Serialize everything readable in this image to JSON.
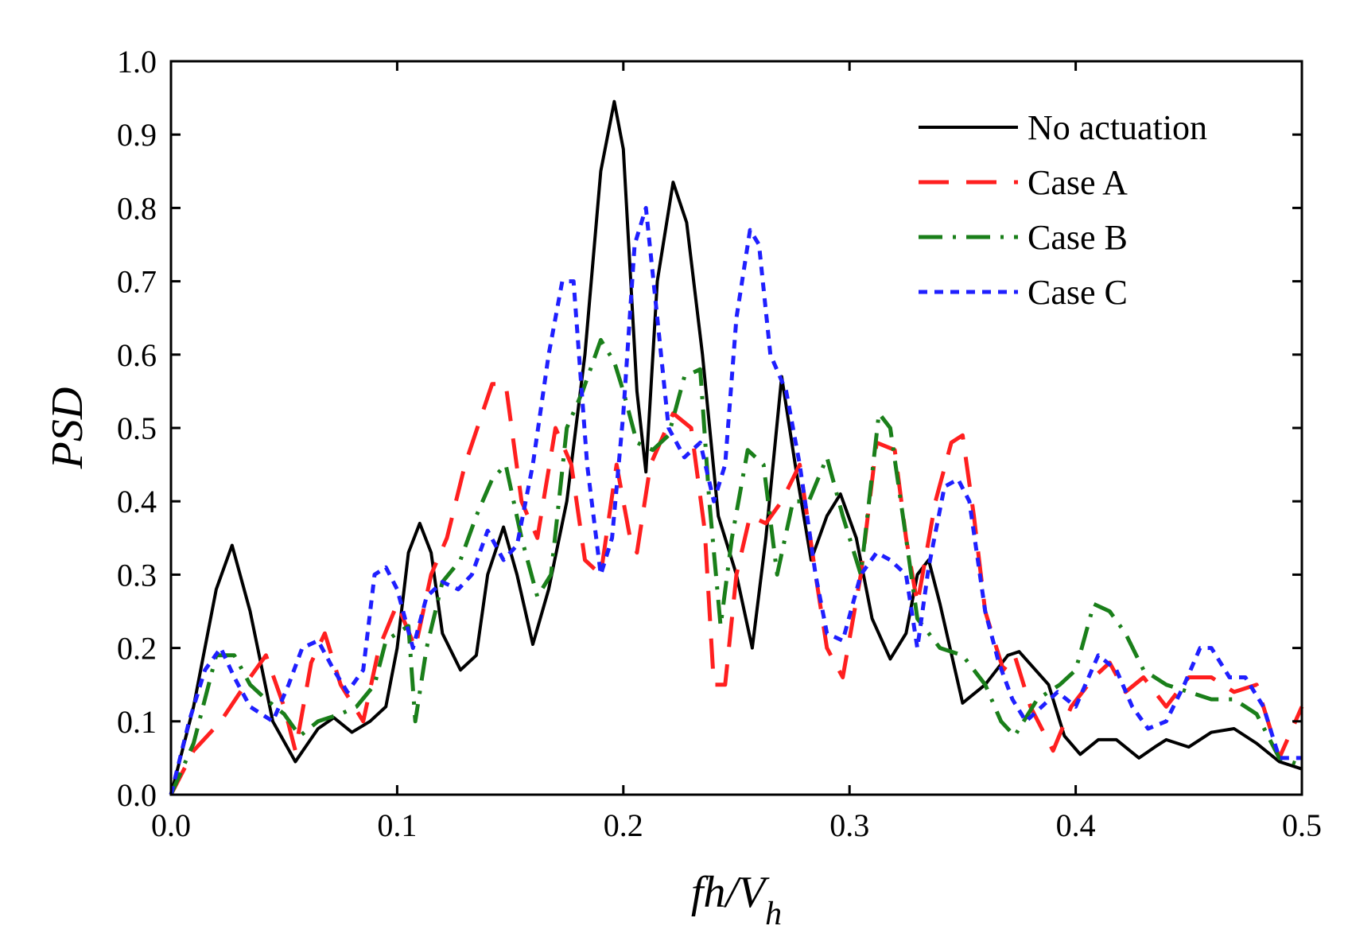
{
  "chart_data": {
    "type": "line",
    "title": "",
    "xlabel": "fh/V",
    "xlabel_subscript": "h",
    "ylabel": "PSD",
    "xlim": [
      0.0,
      0.5
    ],
    "ylim": [
      0.0,
      1.0
    ],
    "xticks": [
      "0.0",
      "0.1",
      "0.2",
      "0.3",
      "0.4",
      "0.5"
    ],
    "yticks": [
      "0.0",
      "0.1",
      "0.2",
      "0.3",
      "0.4",
      "0.5",
      "0.6",
      "0.7",
      "0.8",
      "0.9",
      "1.0"
    ],
    "grid": false,
    "legend_position": "top-right",
    "series": [
      {
        "name": "No actuation",
        "color": "#000000",
        "style": "solid",
        "points": [
          [
            0.0,
            0.0
          ],
          [
            0.01,
            0.12
          ],
          [
            0.02,
            0.28
          ],
          [
            0.027,
            0.34
          ],
          [
            0.035,
            0.25
          ],
          [
            0.045,
            0.1
          ],
          [
            0.055,
            0.045
          ],
          [
            0.065,
            0.09
          ],
          [
            0.072,
            0.105
          ],
          [
            0.08,
            0.085
          ],
          [
            0.088,
            0.1
          ],
          [
            0.095,
            0.12
          ],
          [
            0.1,
            0.2
          ],
          [
            0.105,
            0.33
          ],
          [
            0.11,
            0.37
          ],
          [
            0.115,
            0.33
          ],
          [
            0.12,
            0.22
          ],
          [
            0.128,
            0.17
          ],
          [
            0.135,
            0.19
          ],
          [
            0.14,
            0.3
          ],
          [
            0.147,
            0.365
          ],
          [
            0.153,
            0.3
          ],
          [
            0.16,
            0.205
          ],
          [
            0.167,
            0.28
          ],
          [
            0.175,
            0.4
          ],
          [
            0.183,
            0.6
          ],
          [
            0.19,
            0.85
          ],
          [
            0.196,
            0.945
          ],
          [
            0.2,
            0.88
          ],
          [
            0.206,
            0.55
          ],
          [
            0.21,
            0.44
          ],
          [
            0.215,
            0.7
          ],
          [
            0.222,
            0.835
          ],
          [
            0.228,
            0.78
          ],
          [
            0.235,
            0.6
          ],
          [
            0.242,
            0.38
          ],
          [
            0.25,
            0.3
          ],
          [
            0.257,
            0.2
          ],
          [
            0.263,
            0.35
          ],
          [
            0.27,
            0.57
          ],
          [
            0.276,
            0.45
          ],
          [
            0.283,
            0.32
          ],
          [
            0.29,
            0.38
          ],
          [
            0.296,
            0.41
          ],
          [
            0.303,
            0.35
          ],
          [
            0.31,
            0.24
          ],
          [
            0.318,
            0.185
          ],
          [
            0.325,
            0.22
          ],
          [
            0.33,
            0.3
          ],
          [
            0.335,
            0.32
          ],
          [
            0.34,
            0.26
          ],
          [
            0.35,
            0.125
          ],
          [
            0.36,
            0.15
          ],
          [
            0.37,
            0.19
          ],
          [
            0.375,
            0.195
          ],
          [
            0.388,
            0.15
          ],
          [
            0.395,
            0.08
          ],
          [
            0.402,
            0.055
          ],
          [
            0.41,
            0.075
          ],
          [
            0.418,
            0.075
          ],
          [
            0.428,
            0.05
          ],
          [
            0.435,
            0.065
          ],
          [
            0.44,
            0.075
          ],
          [
            0.45,
            0.065
          ],
          [
            0.46,
            0.085
          ],
          [
            0.47,
            0.09
          ],
          [
            0.48,
            0.07
          ],
          [
            0.49,
            0.045
          ],
          [
            0.5,
            0.035
          ]
        ]
      },
      {
        "name": "Case A",
        "color": "#ff1f1f",
        "style": "dashed",
        "points": [
          [
            0.0,
            0.0
          ],
          [
            0.01,
            0.06
          ],
          [
            0.022,
            0.1
          ],
          [
            0.035,
            0.16
          ],
          [
            0.042,
            0.19
          ],
          [
            0.05,
            0.12
          ],
          [
            0.055,
            0.06
          ],
          [
            0.062,
            0.18
          ],
          [
            0.068,
            0.22
          ],
          [
            0.075,
            0.15
          ],
          [
            0.085,
            0.1
          ],
          [
            0.092,
            0.2
          ],
          [
            0.1,
            0.26
          ],
          [
            0.108,
            0.2
          ],
          [
            0.115,
            0.3
          ],
          [
            0.122,
            0.35
          ],
          [
            0.13,
            0.45
          ],
          [
            0.142,
            0.56
          ],
          [
            0.148,
            0.56
          ],
          [
            0.155,
            0.4
          ],
          [
            0.162,
            0.35
          ],
          [
            0.17,
            0.5
          ],
          [
            0.177,
            0.45
          ],
          [
            0.183,
            0.32
          ],
          [
            0.19,
            0.3
          ],
          [
            0.197,
            0.45
          ],
          [
            0.203,
            0.35
          ],
          [
            0.206,
            0.33
          ],
          [
            0.212,
            0.45
          ],
          [
            0.222,
            0.52
          ],
          [
            0.23,
            0.5
          ],
          [
            0.236,
            0.36
          ],
          [
            0.24,
            0.15
          ],
          [
            0.245,
            0.15
          ],
          [
            0.25,
            0.3
          ],
          [
            0.256,
            0.38
          ],
          [
            0.263,
            0.37
          ],
          [
            0.27,
            0.4
          ],
          [
            0.278,
            0.45
          ],
          [
            0.285,
            0.3
          ],
          [
            0.29,
            0.2
          ],
          [
            0.297,
            0.16
          ],
          [
            0.305,
            0.3
          ],
          [
            0.312,
            0.48
          ],
          [
            0.32,
            0.47
          ],
          [
            0.325,
            0.35
          ],
          [
            0.33,
            0.26
          ],
          [
            0.338,
            0.4
          ],
          [
            0.345,
            0.48
          ],
          [
            0.35,
            0.49
          ],
          [
            0.355,
            0.38
          ],
          [
            0.36,
            0.25
          ],
          [
            0.368,
            0.17
          ],
          [
            0.373,
            0.19
          ],
          [
            0.38,
            0.12
          ],
          [
            0.39,
            0.06
          ],
          [
            0.398,
            0.12
          ],
          [
            0.408,
            0.16
          ],
          [
            0.415,
            0.18
          ],
          [
            0.422,
            0.14
          ],
          [
            0.43,
            0.16
          ],
          [
            0.44,
            0.12
          ],
          [
            0.45,
            0.16
          ],
          [
            0.46,
            0.16
          ],
          [
            0.47,
            0.14
          ],
          [
            0.48,
            0.15
          ],
          [
            0.49,
            0.05
          ],
          [
            0.5,
            0.12
          ]
        ]
      },
      {
        "name": "Case B",
        "color": "#1a7f1a",
        "style": "dashdot",
        "points": [
          [
            0.0,
            0.0
          ],
          [
            0.01,
            0.07
          ],
          [
            0.02,
            0.19
          ],
          [
            0.028,
            0.19
          ],
          [
            0.035,
            0.15
          ],
          [
            0.042,
            0.13
          ],
          [
            0.05,
            0.11
          ],
          [
            0.057,
            0.08
          ],
          [
            0.065,
            0.1
          ],
          [
            0.075,
            0.11
          ],
          [
            0.082,
            0.12
          ],
          [
            0.09,
            0.15
          ],
          [
            0.095,
            0.21
          ],
          [
            0.105,
            0.23
          ],
          [
            0.108,
            0.1
          ],
          [
            0.113,
            0.2
          ],
          [
            0.12,
            0.29
          ],
          [
            0.128,
            0.32
          ],
          [
            0.135,
            0.38
          ],
          [
            0.142,
            0.43
          ],
          [
            0.148,
            0.45
          ],
          [
            0.155,
            0.35
          ],
          [
            0.162,
            0.27
          ],
          [
            0.168,
            0.3
          ],
          [
            0.175,
            0.5
          ],
          [
            0.182,
            0.55
          ],
          [
            0.19,
            0.62
          ],
          [
            0.196,
            0.59
          ],
          [
            0.2,
            0.55
          ],
          [
            0.206,
            0.48
          ],
          [
            0.213,
            0.47
          ],
          [
            0.22,
            0.49
          ],
          [
            0.227,
            0.57
          ],
          [
            0.234,
            0.58
          ],
          [
            0.238,
            0.4
          ],
          [
            0.243,
            0.23
          ],
          [
            0.248,
            0.35
          ],
          [
            0.255,
            0.47
          ],
          [
            0.262,
            0.45
          ],
          [
            0.268,
            0.3
          ],
          [
            0.275,
            0.4
          ],
          [
            0.282,
            0.4
          ],
          [
            0.29,
            0.46
          ],
          [
            0.297,
            0.38
          ],
          [
            0.305,
            0.3
          ],
          [
            0.313,
            0.52
          ],
          [
            0.318,
            0.5
          ],
          [
            0.325,
            0.35
          ],
          [
            0.33,
            0.24
          ],
          [
            0.34,
            0.2
          ],
          [
            0.35,
            0.19
          ],
          [
            0.36,
            0.15
          ],
          [
            0.367,
            0.1
          ],
          [
            0.373,
            0.08
          ],
          [
            0.383,
            0.13
          ],
          [
            0.393,
            0.15
          ],
          [
            0.4,
            0.17
          ],
          [
            0.408,
            0.26
          ],
          [
            0.415,
            0.25
          ],
          [
            0.422,
            0.22
          ],
          [
            0.43,
            0.17
          ],
          [
            0.44,
            0.15
          ],
          [
            0.45,
            0.14
          ],
          [
            0.46,
            0.13
          ],
          [
            0.47,
            0.13
          ],
          [
            0.48,
            0.11
          ],
          [
            0.49,
            0.05
          ],
          [
            0.5,
            0.04
          ]
        ]
      },
      {
        "name": "Case C",
        "color": "#1f1fff",
        "style": "dotted",
        "points": [
          [
            0.0,
            0.0
          ],
          [
            0.008,
            0.1
          ],
          [
            0.015,
            0.17
          ],
          [
            0.022,
            0.2
          ],
          [
            0.028,
            0.16
          ],
          [
            0.035,
            0.12
          ],
          [
            0.045,
            0.1
          ],
          [
            0.052,
            0.15
          ],
          [
            0.058,
            0.2
          ],
          [
            0.065,
            0.21
          ],
          [
            0.072,
            0.17
          ],
          [
            0.078,
            0.14
          ],
          [
            0.085,
            0.17
          ],
          [
            0.09,
            0.3
          ],
          [
            0.095,
            0.31
          ],
          [
            0.1,
            0.28
          ],
          [
            0.107,
            0.2
          ],
          [
            0.113,
            0.27
          ],
          [
            0.12,
            0.29
          ],
          [
            0.127,
            0.28
          ],
          [
            0.133,
            0.3
          ],
          [
            0.14,
            0.36
          ],
          [
            0.147,
            0.32
          ],
          [
            0.153,
            0.34
          ],
          [
            0.16,
            0.45
          ],
          [
            0.167,
            0.6
          ],
          [
            0.173,
            0.7
          ],
          [
            0.178,
            0.7
          ],
          [
            0.184,
            0.45
          ],
          [
            0.19,
            0.3
          ],
          [
            0.195,
            0.35
          ],
          [
            0.2,
            0.52
          ],
          [
            0.205,
            0.75
          ],
          [
            0.21,
            0.8
          ],
          [
            0.215,
            0.65
          ],
          [
            0.22,
            0.5
          ],
          [
            0.227,
            0.46
          ],
          [
            0.234,
            0.48
          ],
          [
            0.24,
            0.4
          ],
          [
            0.245,
            0.45
          ],
          [
            0.25,
            0.65
          ],
          [
            0.256,
            0.77
          ],
          [
            0.26,
            0.75
          ],
          [
            0.265,
            0.6
          ],
          [
            0.272,
            0.55
          ],
          [
            0.278,
            0.45
          ],
          [
            0.285,
            0.3
          ],
          [
            0.29,
            0.22
          ],
          [
            0.297,
            0.21
          ],
          [
            0.305,
            0.3
          ],
          [
            0.312,
            0.33
          ],
          [
            0.318,
            0.32
          ],
          [
            0.325,
            0.3
          ],
          [
            0.33,
            0.2
          ],
          [
            0.335,
            0.31
          ],
          [
            0.342,
            0.42
          ],
          [
            0.348,
            0.43
          ],
          [
            0.353,
            0.4
          ],
          [
            0.36,
            0.25
          ],
          [
            0.366,
            0.18
          ],
          [
            0.372,
            0.13
          ],
          [
            0.378,
            0.1
          ],
          [
            0.385,
            0.12
          ],
          [
            0.392,
            0.14
          ],
          [
            0.4,
            0.12
          ],
          [
            0.41,
            0.19
          ],
          [
            0.418,
            0.17
          ],
          [
            0.425,
            0.12
          ],
          [
            0.432,
            0.09
          ],
          [
            0.44,
            0.1
          ],
          [
            0.448,
            0.15
          ],
          [
            0.455,
            0.2
          ],
          [
            0.46,
            0.2
          ],
          [
            0.468,
            0.16
          ],
          [
            0.475,
            0.16
          ],
          [
            0.483,
            0.12
          ],
          [
            0.49,
            0.05
          ],
          [
            0.5,
            0.05
          ]
        ]
      }
    ]
  }
}
